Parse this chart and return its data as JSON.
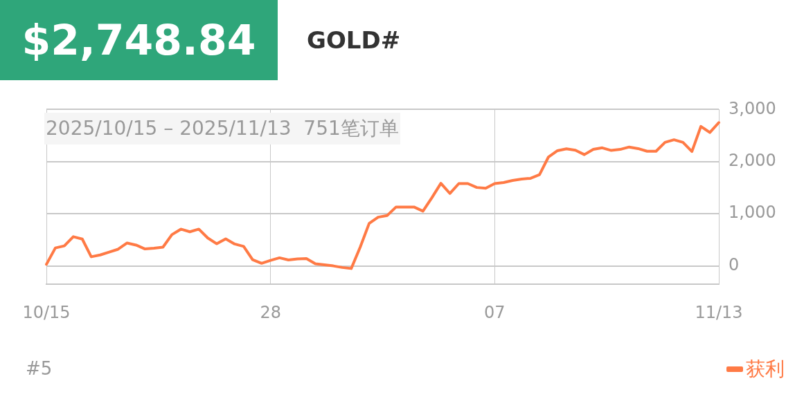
{
  "chart_data": {
    "type": "line",
    "title": "GOLD#",
    "subtitle": "$2,748.84",
    "annotations": [
      "2025/10/15 – 2025/11/13  751笔订单",
      "#5"
    ],
    "categories": [
      "10/15",
      null,
      null,
      null,
      null,
      null,
      null,
      null,
      null,
      null,
      null,
      null,
      null,
      null,
      null,
      null,
      null,
      null,
      null,
      null,
      null,
      null,
      null,
      null,
      null,
      "28",
      null,
      null,
      null,
      null,
      null,
      null,
      null,
      null,
      null,
      null,
      null,
      null,
      null,
      null,
      null,
      null,
      null,
      null,
      null,
      null,
      null,
      null,
      null,
      null,
      "07",
      null,
      null,
      null,
      null,
      null,
      null,
      null,
      null,
      null,
      null,
      null,
      null,
      null,
      null,
      null,
      null,
      null,
      null,
      null,
      null,
      null,
      null,
      null,
      null,
      "11/13"
    ],
    "ylim": [
      -350,
      3000
    ],
    "yticks": [
      {
        "value": 0,
        "label": "0"
      },
      {
        "value": 1000,
        "label": "1,000"
      },
      {
        "value": 2000,
        "label": "2,000"
      },
      {
        "value": 3000,
        "label": "3,000"
      }
    ],
    "grid": true,
    "legend": "bottom right",
    "series": [
      {
        "name": "获利",
        "color": "#ff7a45",
        "values": [
          30,
          345,
          385,
          560,
          515,
          175,
          210,
          265,
          320,
          440,
          400,
          325,
          340,
          360,
          600,
          705,
          655,
          705,
          535,
          425,
          520,
          420,
          375,
          120,
          50,
          105,
          155,
          115,
          135,
          140,
          40,
          20,
          0,
          -30,
          -50,
          360,
          815,
          935,
          965,
          1130,
          1130,
          1130,
          1050,
          1310,
          1585,
          1390,
          1580,
          1580,
          1505,
          1490,
          1580,
          1600,
          1640,
          1665,
          1680,
          1750,
          2090,
          2210,
          2245,
          2220,
          2135,
          2235,
          2265,
          2215,
          2235,
          2280,
          2250,
          2200,
          2200,
          2370,
          2420,
          2370,
          2195,
          2675,
          2560,
          2750
        ]
      }
    ]
  }
}
